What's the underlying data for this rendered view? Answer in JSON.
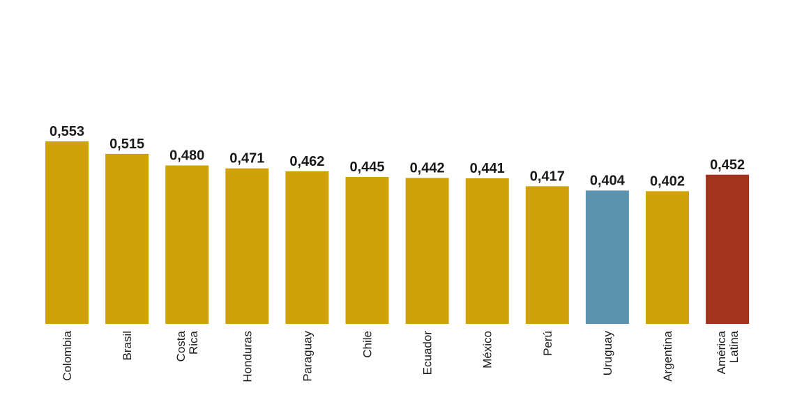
{
  "chart_data": {
    "type": "bar",
    "categories": [
      "Colombia",
      "Brasil",
      "Costa Rica",
      "Honduras",
      "Paraguay",
      "Chile",
      "Ecuador",
      "México",
      "Perú",
      "Uruguay",
      "Argentina",
      "América Latina"
    ],
    "values": [
      0.553,
      0.515,
      0.48,
      0.471,
      0.462,
      0.445,
      0.442,
      0.441,
      0.417,
      0.404,
      0.402,
      0.452
    ],
    "value_labels": [
      "0,553",
      "0,515",
      "0,480",
      "0,471",
      "0,462",
      "0,445",
      "0,442",
      "0,441",
      "0,417",
      "0,404",
      "0,402",
      "0,452"
    ],
    "colors": [
      "#cea208",
      "#cea208",
      "#cea208",
      "#cea208",
      "#cea208",
      "#cea208",
      "#cea208",
      "#cea208",
      "#cea208",
      "#5b93ae",
      "#cea208",
      "#a3331f"
    ]
  }
}
